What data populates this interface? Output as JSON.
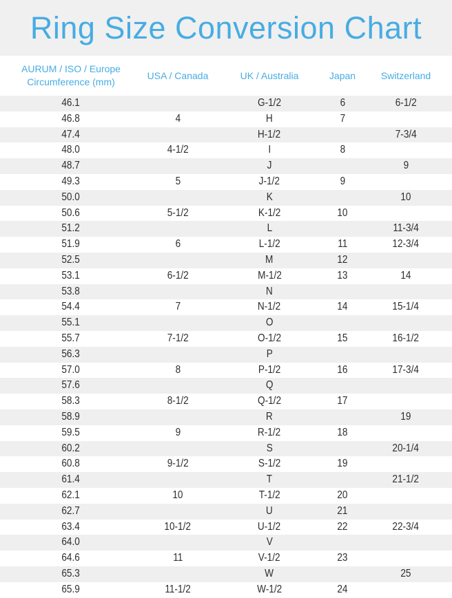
{
  "page_title": "Ring Size Conversion Chart",
  "colors": {
    "accent_blue": "#47ace3",
    "banner_gray": "#f0f0f0",
    "stripe_gray": "#efefef",
    "row_white": "#ffffff",
    "cell_text": "#2e2e2e"
  },
  "chart_data": {
    "type": "table",
    "title": "Ring Size Conversion Chart",
    "columns": [
      {
        "id": "circumference",
        "label": "AURUM / ISO / Europe Circumference (mm)",
        "lines": [
          "AURUM / ISO / Europe",
          "Circumference (mm)"
        ]
      },
      {
        "id": "usa-canada",
        "label": "USA / Canada",
        "lines": [
          "USA / Canada"
        ]
      },
      {
        "id": "uk-australia",
        "label": "UK / Australia",
        "lines": [
          "UK / Australia"
        ]
      },
      {
        "id": "japan",
        "label": "Japan",
        "lines": [
          "Japan"
        ]
      },
      {
        "id": "switzerland",
        "label": "Switzerland",
        "lines": [
          "Switzerland"
        ]
      }
    ],
    "rows": [
      [
        "46.1",
        "",
        "G-1/2",
        "6",
        "6-1/2"
      ],
      [
        "46.8",
        "4",
        "H",
        "7",
        ""
      ],
      [
        "47.4",
        "",
        "H-1/2",
        "",
        "7-3/4"
      ],
      [
        "48.0",
        "4-1/2",
        "I",
        "8",
        ""
      ],
      [
        "48.7",
        "",
        "J",
        "",
        "9"
      ],
      [
        "49.3",
        "5",
        "J-1/2",
        "9",
        ""
      ],
      [
        "50.0",
        "",
        "K",
        "",
        "10"
      ],
      [
        "50.6",
        "5-1/2",
        "K-1/2",
        "10",
        ""
      ],
      [
        "51.2",
        "",
        "L",
        "",
        "11-3/4"
      ],
      [
        "51.9",
        "6",
        "L-1/2",
        "11",
        "12-3/4"
      ],
      [
        "52.5",
        "",
        "M",
        "12",
        ""
      ],
      [
        "53.1",
        "6-1/2",
        "M-1/2",
        "13",
        "14"
      ],
      [
        "53.8",
        "",
        "N",
        "",
        ""
      ],
      [
        "54.4",
        "7",
        "N-1/2",
        "14",
        "15-1/4"
      ],
      [
        "55.1",
        "",
        "O",
        "",
        ""
      ],
      [
        "55.7",
        "7-1/2",
        "O-1/2",
        "15",
        "16-1/2"
      ],
      [
        "56.3",
        "",
        "P",
        "",
        ""
      ],
      [
        "57.0",
        "8",
        "P-1/2",
        "16",
        "17-3/4"
      ],
      [
        "57.6",
        "",
        "Q",
        "",
        ""
      ],
      [
        "58.3",
        "8-1/2",
        "Q-1/2",
        "17",
        ""
      ],
      [
        "58.9",
        "",
        "R",
        "",
        "19"
      ],
      [
        "59.5",
        "9",
        "R-1/2",
        "18",
        ""
      ],
      [
        "60.2",
        "",
        "S",
        "",
        "20-1/4"
      ],
      [
        "60.8",
        "9-1/2",
        "S-1/2",
        "19",
        ""
      ],
      [
        "61.4",
        "",
        "T",
        "",
        "21-1/2"
      ],
      [
        "62.1",
        "10",
        "T-1/2",
        "20",
        ""
      ],
      [
        "62.7",
        "",
        "U",
        "21",
        ""
      ],
      [
        "63.4",
        "10-1/2",
        "U-1/2",
        "22",
        "22-3/4"
      ],
      [
        "64.0",
        "",
        "V",
        "",
        ""
      ],
      [
        "64.6",
        "11",
        "V-1/2",
        "23",
        ""
      ],
      [
        "65.3",
        "",
        "W",
        "",
        "25"
      ],
      [
        "65.9",
        "11-1/2",
        "W-1/2",
        "24",
        ""
      ]
    ],
    "layout": {
      "striped_rows": true,
      "first_data_row_shaded": true,
      "legend": "none",
      "grid": "off"
    }
  }
}
